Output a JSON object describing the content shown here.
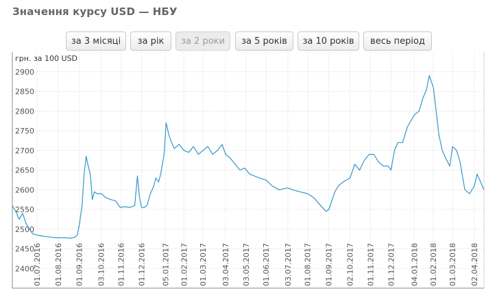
{
  "page": {
    "title": "Значення курсу USD — НБУ",
    "periods": [
      {
        "label": "за 3 місяці",
        "active": false
      },
      {
        "label": "за рік",
        "active": false
      },
      {
        "label": "за 2 роки",
        "active": true
      },
      {
        "label": "за 5 років",
        "active": false
      },
      {
        "label": "за 10 років",
        "active": false
      },
      {
        "label": "весь період",
        "active": false
      }
    ],
    "colors": {
      "line": "#2f97c9",
      "grid": "#d4d4d4",
      "axis": "#888888"
    }
  },
  "chart_data": {
    "type": "line",
    "title": "",
    "ylabel": "грн. за 100 USD",
    "xlabel": "",
    "ylim": [
      2350,
      2950
    ],
    "yticks": [
      2400,
      2450,
      2500,
      2550,
      2600,
      2650,
      2700,
      2750,
      2800,
      2850,
      2900
    ],
    "x_tick_labels": [
      "01.07.2016",
      "01.08.2016",
      "01.09.2016",
      "03.10.2016",
      "01.11.2016",
      "01.12.2016",
      "05.01.2017",
      "01.02.2017",
      "01.03.2017",
      "03.04.2017",
      "03.05.2017",
      "01.06.2017",
      "03.07.2017",
      "01.08.2017",
      "01.09.2017",
      "02.10.2017",
      "01.11.2017",
      "01.12.2017",
      "04.01.2018",
      "01.02.2018",
      "01.03.2018",
      "02.04.2018"
    ],
    "grid": true,
    "series": [
      {
        "name": "",
        "x": [
          "2016-05-26",
          "2016-05-31",
          "2016-06-05",
          "2016-06-10",
          "2016-06-15",
          "2016-06-20",
          "2016-06-25",
          "2016-07-01",
          "2016-07-07",
          "2016-07-14",
          "2016-07-21",
          "2016-07-28",
          "2016-08-04",
          "2016-08-11",
          "2016-08-18",
          "2016-08-25",
          "2016-08-29",
          "2016-09-01",
          "2016-09-05",
          "2016-09-08",
          "2016-09-11",
          "2016-09-14",
          "2016-09-17",
          "2016-09-20",
          "2016-09-23",
          "2016-09-27",
          "2016-10-03",
          "2016-10-10",
          "2016-10-17",
          "2016-10-24",
          "2016-10-31",
          "2016-11-07",
          "2016-11-14",
          "2016-11-21",
          "2016-11-25",
          "2016-11-28",
          "2016-12-01",
          "2016-12-05",
          "2016-12-09",
          "2016-12-14",
          "2016-12-19",
          "2016-12-22",
          "2016-12-26",
          "2016-12-29",
          "2017-01-03",
          "2017-01-06",
          "2017-01-10",
          "2017-01-14",
          "2017-01-18",
          "2017-01-25",
          "2017-02-01",
          "2017-02-08",
          "2017-02-15",
          "2017-02-22",
          "2017-03-01",
          "2017-03-08",
          "2017-03-15",
          "2017-03-22",
          "2017-03-29",
          "2017-04-03",
          "2017-04-10",
          "2017-04-17",
          "2017-04-24",
          "2017-05-01",
          "2017-05-08",
          "2017-05-15",
          "2017-05-22",
          "2017-06-01",
          "2017-06-10",
          "2017-06-20",
          "2017-07-03",
          "2017-07-10",
          "2017-07-20",
          "2017-08-01",
          "2017-08-10",
          "2017-08-20",
          "2017-08-28",
          "2017-09-01",
          "2017-09-05",
          "2017-09-10",
          "2017-09-15",
          "2017-09-22",
          "2017-10-02",
          "2017-10-09",
          "2017-10-16",
          "2017-10-23",
          "2017-10-30",
          "2017-11-06",
          "2017-11-13",
          "2017-11-20",
          "2017-11-27",
          "2017-12-01",
          "2017-12-06",
          "2017-12-11",
          "2017-12-18",
          "2017-12-25",
          "2018-01-04",
          "2018-01-11",
          "2018-01-16",
          "2018-01-22",
          "2018-01-26",
          "2018-02-01",
          "2018-02-05",
          "2018-02-09",
          "2018-02-14",
          "2018-02-19",
          "2018-02-25",
          "2018-03-01",
          "2018-03-07",
          "2018-03-12",
          "2018-03-19",
          "2018-03-26",
          "2018-04-02",
          "2018-04-06",
          "2018-04-11",
          "2018-04-16"
        ],
        "y": [
          2560,
          2545,
          2525,
          2540,
          2515,
          2500,
          2488,
          2485,
          2483,
          2481,
          2480,
          2478,
          2478,
          2478,
          2477,
          2479,
          2485,
          2510,
          2560,
          2640,
          2685,
          2660,
          2640,
          2575,
          2595,
          2590,
          2590,
          2580,
          2575,
          2572,
          2555,
          2557,
          2555,
          2560,
          2635,
          2580,
          2555,
          2555,
          2560,
          2590,
          2610,
          2630,
          2620,
          2640,
          2690,
          2770,
          2740,
          2720,
          2705,
          2715,
          2700,
          2695,
          2710,
          2690,
          2700,
          2710,
          2690,
          2700,
          2715,
          2690,
          2680,
          2665,
          2650,
          2655,
          2640,
          2635,
          2630,
          2625,
          2610,
          2600,
          2605,
          2600,
          2595,
          2590,
          2580,
          2560,
          2545,
          2550,
          2570,
          2595,
          2610,
          2620,
          2630,
          2665,
          2650,
          2675,
          2690,
          2690,
          2670,
          2660,
          2660,
          2650,
          2700,
          2720,
          2720,
          2760,
          2790,
          2800,
          2830,
          2855,
          2890,
          2860,
          2800,
          2740,
          2700,
          2680,
          2660,
          2710,
          2700,
          2670,
          2600,
          2590,
          2610,
          2640,
          2620,
          2600
        ]
      }
    ]
  }
}
